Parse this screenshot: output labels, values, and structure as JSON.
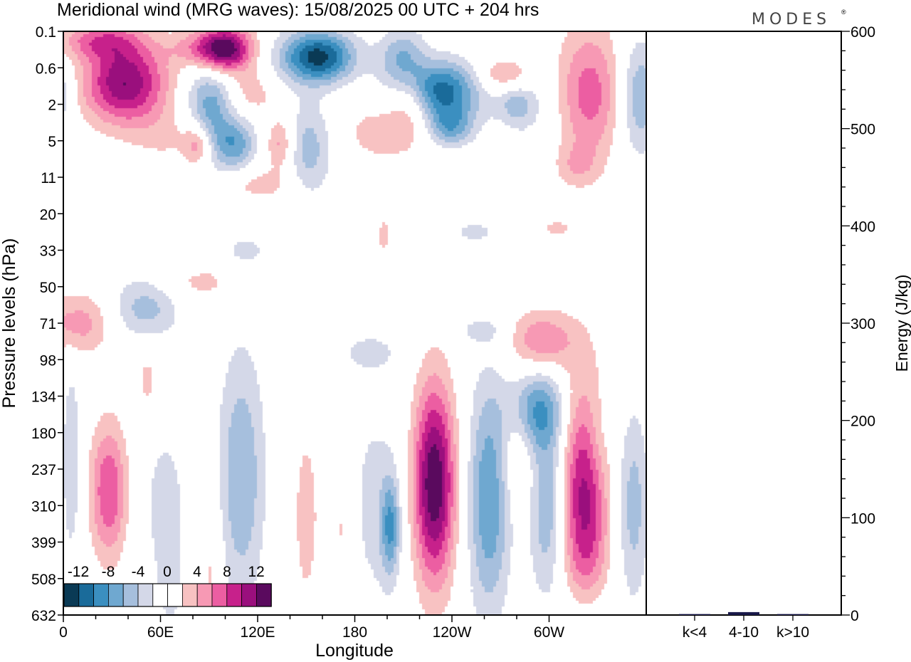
{
  "chart_data": {
    "type": "heatmap",
    "title": "Meridional wind (MRG waves):  15/08/2025  00 UTC  + 204 hrs",
    "logo": "MODES",
    "logo_mark": "®",
    "xlabel": "Longitude",
    "ylabel": "Pressure levels (hPa)",
    "x_ticks": [
      "0",
      "60E",
      "120E",
      "180",
      "120W",
      "60W"
    ],
    "x_tick_degrees": [
      0,
      60,
      120,
      180,
      240,
      300
    ],
    "x_range": [
      0,
      360
    ],
    "y_levels": [
      "0.1",
      "0.6",
      "2",
      "5",
      "11",
      "20",
      "33",
      "50",
      "71",
      "98",
      "134",
      "180",
      "237",
      "310",
      "399",
      "508",
      "632"
    ],
    "colorbar": {
      "tick_labels": [
        "-12",
        "-8",
        "-4",
        "0",
        "4",
        "8",
        "12"
      ],
      "levels": [
        -14,
        -12,
        -10,
        -8,
        -6,
        -4,
        -2,
        2,
        4,
        6,
        8,
        10,
        12,
        14
      ],
      "colors": [
        "#0a3a55",
        "#1a6b9a",
        "#3b8fc0",
        "#6fa8d0",
        "#a6bfdd",
        "#d4d8e8",
        "#ffffff",
        "#ffffff",
        "#f8c2c2",
        "#f799b4",
        "#ec5ea2",
        "#c7218b",
        "#9a0f7d",
        "#5a0a5e"
      ]
    },
    "features": [
      {
        "lon": 100,
        "level": 0.5,
        "value": 13,
        "sx": 12,
        "sy": 0.45
      },
      {
        "lon": 157,
        "level": 0.7,
        "value": -13,
        "sx": 16,
        "sy": 0.5
      },
      {
        "lon": 38,
        "level": 1.4,
        "value": 12,
        "sx": 18,
        "sy": 0.8
      },
      {
        "lon": 22,
        "level": 0.25,
        "value": 6,
        "sx": 18,
        "sy": 0.35
      },
      {
        "lon": 84,
        "level": 0.45,
        "value": 4,
        "sx": 14,
        "sy": 0.35
      },
      {
        "lon": 210,
        "level": 0.8,
        "value": -7,
        "sx": 10,
        "sy": 0.6
      },
      {
        "lon": 214,
        "level": 1.7,
        "value": 5,
        "sx": 9,
        "sy": 0.7
      },
      {
        "lon": 233,
        "level": 1.6,
        "value": -11,
        "sx": 17,
        "sy": 0.55
      },
      {
        "lon": 272,
        "level": 1.2,
        "value": 5,
        "sx": 12,
        "sy": 0.35
      },
      {
        "lon": 284,
        "level": 2.0,
        "value": -3,
        "sx": 14,
        "sy": 0.7
      },
      {
        "lon": 325,
        "level": 1.7,
        "value": 7,
        "sx": 14,
        "sy": 1.3
      },
      {
        "lon": 356,
        "level": 1.8,
        "value": -6,
        "sx": 9,
        "sy": 1.1
      },
      {
        "lon": 0,
        "level": 1.7,
        "value": -4,
        "sx": 5,
        "sy": 0.6
      },
      {
        "lon": 90,
        "level": 2.1,
        "value": -7,
        "sx": 10,
        "sy": 0.9
      },
      {
        "lon": 117,
        "level": 1.7,
        "value": 3,
        "sx": 10,
        "sy": 0.4
      },
      {
        "lon": 83,
        "level": 3.1,
        "value": 6,
        "sx": 6,
        "sy": 0.4
      },
      {
        "lon": 65,
        "level": 2.9,
        "value": 2,
        "sx": 16,
        "sy": 0.6
      },
      {
        "lon": 106,
        "level": 3.1,
        "value": -7,
        "sx": 9,
        "sy": 0.5
      },
      {
        "lon": 134,
        "level": 3.1,
        "value": 5,
        "sx": 6,
        "sy": 0.5
      },
      {
        "lon": 152,
        "level": 3.2,
        "value": -5,
        "sx": 10,
        "sy": 0.9
      },
      {
        "lon": 197,
        "level": 2.8,
        "value": 3,
        "sx": 18,
        "sy": 0.6
      },
      {
        "lon": 239,
        "level": 2.6,
        "value": -7,
        "sx": 10,
        "sy": 0.4
      },
      {
        "lon": 280,
        "level": 2.0,
        "value": -3,
        "sx": 6,
        "sy": 0.3
      },
      {
        "lon": 317,
        "level": 3.7,
        "value": 3,
        "sx": 9,
        "sy": 0.4
      },
      {
        "lon": 122,
        "level": 4.2,
        "value": 3,
        "sx": 14,
        "sy": 0.3
      },
      {
        "lon": 5,
        "level": 3.6,
        "value": -2,
        "sx": 8,
        "sy": 0.3
      },
      {
        "lon": 254,
        "level": 5.5,
        "value": -2.6,
        "sx": 12,
        "sy": 0.25
      },
      {
        "lon": 305,
        "level": 5.4,
        "value": 2.6,
        "sx": 8,
        "sy": 0.2
      },
      {
        "lon": 198,
        "level": 5.6,
        "value": 2.5,
        "sx": 4,
        "sy": 0.5
      },
      {
        "lon": 113,
        "level": 6.0,
        "value": -2.6,
        "sx": 10,
        "sy": 0.3
      },
      {
        "lon": 85,
        "level": 6.9,
        "value": 2.6,
        "sx": 18,
        "sy": 0.35
      },
      {
        "lon": 50,
        "level": 7.6,
        "value": -5,
        "sx": 15,
        "sy": 0.6
      },
      {
        "lon": 9,
        "level": 8.0,
        "value": 5,
        "sx": 16,
        "sy": 0.6
      },
      {
        "lon": 258,
        "level": 8.2,
        "value": -2.6,
        "sx": 10,
        "sy": 0.25
      },
      {
        "lon": 296,
        "level": 8.5,
        "value": 6,
        "sx": 14,
        "sy": 0.6
      },
      {
        "lon": 189,
        "level": 8.8,
        "value": -2.6,
        "sx": 14,
        "sy": 0.4
      },
      {
        "lon": 52,
        "level": 9.6,
        "value": 2.6,
        "sx": 5,
        "sy": 0.8
      },
      {
        "lon": 292,
        "level": 10.4,
        "value": -8,
        "sx": 12,
        "sy": 0.8
      },
      {
        "lon": 5,
        "level": 11.8,
        "value": -4,
        "sx": 4,
        "sy": 1.8
      },
      {
        "lon": 28,
        "level": 12.6,
        "value": 8,
        "sx": 8,
        "sy": 1.3
      },
      {
        "lon": 63,
        "level": 13.0,
        "value": -3,
        "sx": 10,
        "sy": 1.6
      },
      {
        "lon": 110,
        "level": 12.2,
        "value": -6,
        "sx": 10,
        "sy": 2.4
      },
      {
        "lon": 150,
        "level": 13.3,
        "value": 3,
        "sx": 6,
        "sy": 1.9
      },
      {
        "lon": 172,
        "level": 13.6,
        "value": 2.6,
        "sx": 6,
        "sy": 1.4
      },
      {
        "lon": 193,
        "level": 13.0,
        "value": -3,
        "sx": 12,
        "sy": 2.0
      },
      {
        "lon": 202,
        "level": 13.6,
        "value": -7,
        "sx": 4,
        "sy": 0.9
      },
      {
        "lon": 229,
        "level": 12.4,
        "value": 14,
        "sx": 9,
        "sy": 1.9
      },
      {
        "lon": 263,
        "level": 12.8,
        "value": -8,
        "sx": 9,
        "sy": 2.2
      },
      {
        "lon": 281,
        "level": 11.4,
        "value": 3,
        "sx": 8,
        "sy": 1.1
      },
      {
        "lon": 299,
        "level": 13.0,
        "value": -6,
        "sx": 8,
        "sy": 1.7
      },
      {
        "lon": 322,
        "level": 12.8,
        "value": 11,
        "sx": 10,
        "sy": 2.2
      },
      {
        "lon": 352,
        "level": 13.0,
        "value": -5,
        "sx": 7,
        "sy": 1.8
      },
      {
        "lon": 330,
        "level": 11.2,
        "value": -2.5,
        "sx": 6,
        "sy": 1.0
      },
      {
        "lon": 91,
        "level": 14.8,
        "value": 2.6,
        "sx": 5,
        "sy": 1.5
      },
      {
        "lon": 66,
        "level": 15.2,
        "value": -2.6,
        "sx": 5,
        "sy": 0.8
      },
      {
        "lon": 322,
        "level": 15.8,
        "value": -2.6,
        "sx": 10,
        "sy": 0.6
      }
    ],
    "energy_axis": {
      "label": "Energy (J/kg)",
      "ticks": [
        0,
        100,
        200,
        300,
        400,
        500,
        600
      ],
      "range": [
        0,
        600
      ],
      "minor_step": 20
    },
    "energy_bars": {
      "categories": [
        "k<4",
        "4-10",
        "k>10"
      ],
      "values": [
        1,
        3,
        1
      ],
      "color": "#1a1a4a"
    }
  }
}
